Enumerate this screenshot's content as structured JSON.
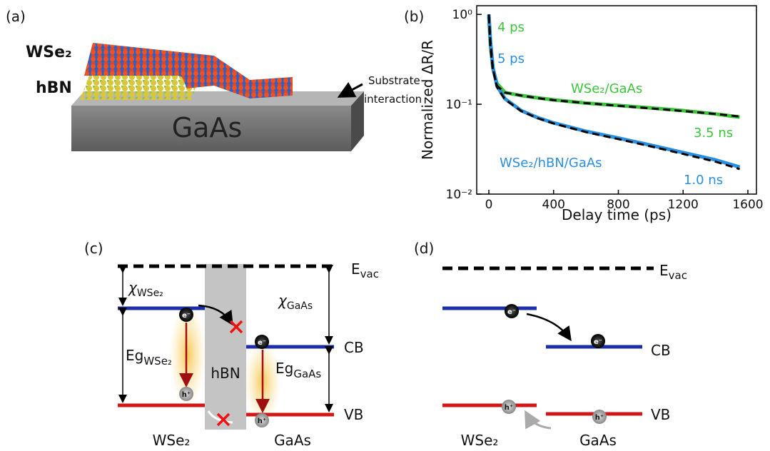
{
  "panels": {
    "a": "(a)",
    "b": "(b)",
    "c": "(c)",
    "d": "(d)"
  },
  "panel_a": {
    "layer_top": "WSe₂",
    "layer_mid": "hBN",
    "substrate": "GaAs",
    "annotation": [
      "Substrate",
      "interaction"
    ]
  },
  "chart_data": {
    "type": "line",
    "x_label": "Delay time (ps)",
    "y_label": "Normalized ΔR/R",
    "x": [
      0,
      10,
      25,
      50,
      100,
      200,
      300,
      400,
      600,
      800,
      1000,
      1200,
      1400,
      1550
    ],
    "series": [
      {
        "name": "WSe₂/GaAs",
        "color": "#3cc43c",
        "values": [
          0.95,
          0.45,
          0.25,
          0.17,
          0.135,
          0.125,
          0.118,
          0.112,
          0.103,
          0.097,
          0.091,
          0.085,
          0.078,
          0.072
        ]
      },
      {
        "name": "WSe₂/hBN/GaAs",
        "color": "#2b8fe0",
        "values": [
          1.0,
          0.5,
          0.26,
          0.16,
          0.115,
          0.085,
          0.071,
          0.062,
          0.05,
          0.042,
          0.035,
          0.029,
          0.024,
          0.02
        ]
      },
      {
        "color": "#000000",
        "dashed": true,
        "values": [
          0.95,
          0.42,
          0.24,
          0.16,
          0.135,
          0.125,
          0.117,
          0.111,
          0.103,
          0.096,
          0.09,
          0.084,
          0.078,
          0.073
        ]
      },
      {
        "color": "#000000",
        "dashed": true,
        "values": [
          1.0,
          0.48,
          0.25,
          0.155,
          0.113,
          0.084,
          0.07,
          0.061,
          0.049,
          0.041,
          0.034,
          0.028,
          0.023,
          0.019
        ]
      }
    ],
    "xlim": [
      -75,
      1653
    ],
    "xticks": [
      0,
      400,
      800,
      1200,
      1600
    ],
    "yscale": "log",
    "ylim": [
      0.01,
      1.25
    ],
    "yticks": [
      {
        "value": 0.01,
        "label": "10⁻²"
      },
      {
        "value": 0.1,
        "label": "10⁻¹"
      },
      {
        "value": 1,
        "label": "10⁰"
      }
    ],
    "annotations": [
      "4 ps",
      "5 ps",
      "3.5 ns",
      "1.0 ns"
    ]
  },
  "panel_c": {
    "vacuum": {
      "main": "E",
      "sub": "vac"
    },
    "chi_wse2": {
      "main": "χ",
      "sub": "WSe₂"
    },
    "chi_gaas": {
      "main": "χ",
      "sub": "GaAs"
    },
    "eg_wse2": {
      "main": "Eg",
      "sub": "WSe₂"
    },
    "eg_gaas": {
      "main": "Eg",
      "sub": "GaAs"
    },
    "barrier": "hBN",
    "cb": "CB",
    "vb": "VB",
    "left": "WSe₂",
    "right": "GaAs",
    "electron": "e⁻",
    "hole": "h⁺"
  },
  "panel_d": {
    "vacuum": {
      "main": "E",
      "sub": "vac"
    },
    "cb": "CB",
    "vb": "VB",
    "left": "WSe₂",
    "right": "GaAs",
    "electron": "e⁻",
    "hole": "h⁺"
  }
}
